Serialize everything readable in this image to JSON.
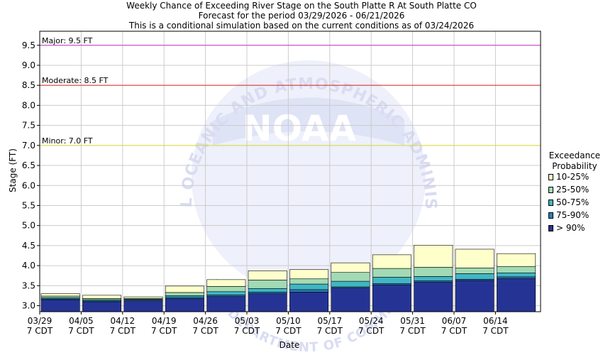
{
  "titles": {
    "line1": "Weekly Chance of Exceeding River Stage on the South Platte R At South Platte CO",
    "line2": "Forecast for the period 03/29/2026 - 06/21/2026",
    "line3": "This is a conditional simulation based on the current conditions as of 03/24/2026"
  },
  "watermark": {
    "logo_text": "NOAA",
    "ring_text": "NATIONAL OCEANIC AND ATMOSPHERIC ADMINISTRATION",
    "bottom_text": "U.S. DEPARTMENT OF COMMERCE"
  },
  "legend": {
    "title_line1": "Exceedance",
    "title_line2": "Probability",
    "items": [
      {
        "label": "10-25%",
        "color": "#ffffcc"
      },
      {
        "label": "25-50%",
        "color": "#a1dab4"
      },
      {
        "label": "50-75%",
        "color": "#41b6c4"
      },
      {
        "label": "75-90%",
        "color": "#2c7fb8"
      },
      {
        "label": "> 90%",
        "color": "#253494"
      }
    ]
  },
  "chart_data": {
    "type": "bar",
    "subtype": "stacked-floating-range",
    "xlabel": "Date",
    "ylabel": "Stage (FT)",
    "ylim": [
      2.85,
      9.85
    ],
    "yticks": [
      "3.0",
      "3.5",
      "4.0",
      "4.5",
      "5.0",
      "5.5",
      "6.0",
      "6.5",
      "7.0",
      "7.5",
      "8.0",
      "8.5",
      "9.0",
      "9.5"
    ],
    "grid": true,
    "legend_position": "right",
    "thresholds": [
      {
        "label": "Major: 9.5 FT",
        "value": 9.5,
        "color": "#cc33cc"
      },
      {
        "label": "Moderate: 8.5 FT",
        "value": 8.5,
        "color": "#dd2222"
      },
      {
        "label": "Minor: 7.0 FT",
        "value": 7.0,
        "color": "#dddd33"
      }
    ],
    "xtick_labels": [
      {
        "date": "03/29",
        "tz": "7 CDT"
      },
      {
        "date": "04/05",
        "tz": "7 CDT"
      },
      {
        "date": "04/12",
        "tz": "7 CDT"
      },
      {
        "date": "04/19",
        "tz": "7 CDT"
      },
      {
        "date": "04/26",
        "tz": "7 CDT"
      },
      {
        "date": "05/03",
        "tz": "7 CDT"
      },
      {
        "date": "05/10",
        "tz": "7 CDT"
      },
      {
        "date": "05/17",
        "tz": "7 CDT"
      },
      {
        "date": "05/24",
        "tz": "7 CDT"
      },
      {
        "date": "05/31",
        "tz": "7 CDT"
      },
      {
        "date": "06/07",
        "tz": "7 CDT"
      },
      {
        "date": "06/14",
        "tz": "7 CDT"
      }
    ],
    "series_order": [
      "> 90%",
      "75-90%",
      "50-75%",
      "25-50%",
      "10-25%"
    ],
    "bars": [
      {
        "week": "03/29",
        "levels": [
          2.85,
          3.15,
          3.17,
          3.2,
          3.24,
          3.3
        ]
      },
      {
        "week": "04/05",
        "levels": [
          2.85,
          3.1,
          3.12,
          3.15,
          3.18,
          3.26
        ]
      },
      {
        "week": "04/12",
        "levels": [
          2.85,
          3.12,
          3.14,
          3.16,
          3.18,
          3.22
        ]
      },
      {
        "week": "04/19",
        "levels": [
          2.85,
          3.18,
          3.21,
          3.25,
          3.33,
          3.49
        ]
      },
      {
        "week": "04/26",
        "levels": [
          2.85,
          3.23,
          3.27,
          3.35,
          3.48,
          3.65
        ]
      },
      {
        "week": "05/03",
        "levels": [
          2.85,
          3.3,
          3.34,
          3.43,
          3.64,
          3.87
        ]
      },
      {
        "week": "05/10",
        "levels": [
          2.85,
          3.34,
          3.4,
          3.54,
          3.67,
          3.9
        ]
      },
      {
        "week": "05/17",
        "levels": [
          2.85,
          3.44,
          3.47,
          3.61,
          3.83,
          4.07
        ]
      },
      {
        "week": "05/24",
        "levels": [
          2.85,
          3.52,
          3.55,
          3.71,
          3.93,
          4.27
        ]
      },
      {
        "week": "05/31",
        "levels": [
          2.85,
          3.59,
          3.62,
          3.73,
          3.96,
          4.51
        ]
      },
      {
        "week": "06/07",
        "levels": [
          2.85,
          3.63,
          3.66,
          3.8,
          3.94,
          4.41
        ]
      },
      {
        "week": "06/14",
        "levels": [
          2.85,
          3.68,
          3.72,
          3.82,
          3.98,
          4.3
        ]
      }
    ]
  }
}
